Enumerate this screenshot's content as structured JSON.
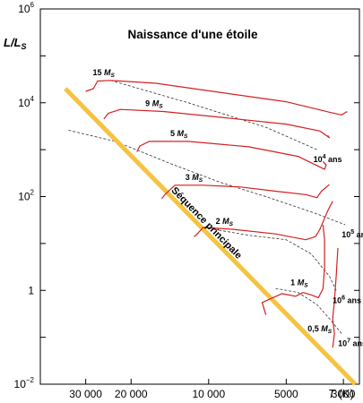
{
  "chart_data": {
    "type": "line",
    "title": "Naissance d'une étoile",
    "xlabel": "T (K)",
    "ylabel": "L/L_S",
    "x_scale": "log",
    "x_reversed": true,
    "y_scale": "log",
    "xlim": [
      45000,
      2600
    ],
    "ylim": [
      0.01,
      1000000
    ],
    "x_ticks": [
      {
        "value": 30000,
        "label": "30 000"
      },
      {
        "value": 20000,
        "label": "20 000"
      },
      {
        "value": 10000,
        "label": "10 000"
      },
      {
        "value": 5000,
        "label": "5000"
      },
      {
        "value": 3000,
        "label": "3000"
      }
    ],
    "y_ticks": [
      {
        "value": 0.01,
        "base": "10",
        "exp": "−2"
      },
      {
        "value": 1,
        "base": "1",
        "exp": ""
      },
      {
        "value": 100,
        "base": "10",
        "exp": "2"
      },
      {
        "value": 10000,
        "base": "10",
        "exp": "4"
      },
      {
        "value": 1000000,
        "base": "10",
        "exp": "6"
      }
    ],
    "main_sequence": {
      "label": "Séquence principale",
      "color": "#f5c342",
      "points": [
        [
          36000,
          20000
        ],
        [
          2700,
          0.01
        ]
      ]
    },
    "tracks": [
      {
        "label": "15",
        "unit": "M_S",
        "color": "#d42020",
        "points": [
          [
            2900,
            6500
          ],
          [
            3050,
            5500
          ],
          [
            3400,
            6300
          ],
          [
            5000,
            10500
          ],
          [
            10000,
            18000
          ],
          [
            16000,
            26000
          ],
          [
            24000,
            30000
          ],
          [
            27000,
            29000
          ],
          [
            28000,
            20000
          ],
          [
            30000,
            17500
          ]
        ]
      },
      {
        "label": "9",
        "unit": "M_S",
        "color": "#d42020",
        "points": [
          [
            3450,
            2000
          ],
          [
            3400,
            1800
          ],
          [
            3700,
            2500
          ],
          [
            5000,
            3500
          ],
          [
            10000,
            5200
          ],
          [
            15000,
            6500
          ],
          [
            22000,
            7200
          ],
          [
            24500,
            6000
          ],
          [
            25500,
            4500
          ]
        ]
      },
      {
        "label": "5",
        "unit": "M_S",
        "color": "#d42020",
        "points": [
          [
            3600,
            560
          ],
          [
            3500,
            470
          ],
          [
            3550,
            380
          ],
          [
            4500,
            720
          ],
          [
            7000,
            1150
          ],
          [
            12000,
            1500
          ],
          [
            17000,
            1500
          ],
          [
            18500,
            1200
          ],
          [
            19000,
            900
          ]
        ]
      },
      {
        "label": "3",
        "unit": "M_S",
        "color": "#d42020",
        "points": [
          [
            3400,
            180
          ],
          [
            3650,
            130
          ],
          [
            3800,
            95
          ],
          [
            4200,
            110
          ],
          [
            5500,
            130
          ],
          [
            7500,
            160
          ],
          [
            10500,
            175
          ],
          [
            13500,
            175
          ],
          [
            14800,
            110
          ],
          [
            15200,
            90
          ]
        ]
      },
      {
        "label": "2",
        "unit": "M_S",
        "color": "#d42020",
        "points": [
          [
            3300,
            80
          ],
          [
            3450,
            50
          ],
          [
            3700,
            20
          ],
          [
            3850,
            14
          ],
          [
            4200,
            12
          ],
          [
            5500,
            16
          ],
          [
            8000,
            20
          ],
          [
            10500,
            22
          ],
          [
            11200,
            15
          ],
          [
            11400,
            14
          ]
        ]
      },
      {
        "label": "1",
        "unit": "M_S",
        "color": "#d42020",
        "points": [
          [
            3600,
            25
          ],
          [
            3550,
            12
          ],
          [
            3550,
            3
          ],
          [
            3600,
            1.1
          ],
          [
            3750,
            0.7
          ],
          [
            4000,
            0.8
          ],
          [
            4300,
            0.9
          ],
          [
            4600,
            0.75
          ],
          [
            5200,
            0.85
          ],
          [
            6200,
            0.55
          ],
          [
            6000,
            0.3
          ]
        ]
      },
      {
        "label": "0,5",
        "unit": "M_S",
        "color": "#d42020",
        "points": [
          [
            3150,
            8
          ],
          [
            3200,
            2
          ],
          [
            3250,
            0.6
          ],
          [
            3300,
            0.25
          ],
          [
            3250,
            0.12
          ],
          [
            3300,
            0.06
          ]
        ]
      }
    ],
    "isochrones": [
      {
        "label": "10",
        "exp": "4",
        "unit": "ans",
        "points": [
          [
            24000,
            30000
          ],
          [
            12000,
            10000
          ],
          [
            6000,
            3000
          ],
          [
            3800,
            1000
          ]
        ]
      },
      {
        "label": "10",
        "exp": "5",
        "unit": "ans",
        "points": [
          [
            35000,
            2600
          ],
          [
            23000,
            1500
          ],
          [
            14000,
            500
          ],
          [
            9000,
            200
          ],
          [
            6000,
            100
          ],
          [
            3900,
            45
          ],
          [
            2950,
            25
          ]
        ]
      },
      {
        "label": "10",
        "exp": "6",
        "unit": "ans",
        "points": [
          [
            9500,
            20
          ],
          [
            7000,
            15
          ],
          [
            5000,
            12
          ],
          [
            4000,
            6
          ],
          [
            3400,
            2
          ],
          [
            3200,
            1
          ]
        ]
      },
      {
        "label": "10",
        "exp": "7",
        "unit": "ans",
        "points": [
          [
            5500,
            1.1
          ],
          [
            4500,
            0.9
          ],
          [
            3800,
            0.5
          ],
          [
            3400,
            0.25
          ],
          [
            3050,
            0.12
          ]
        ]
      }
    ]
  }
}
